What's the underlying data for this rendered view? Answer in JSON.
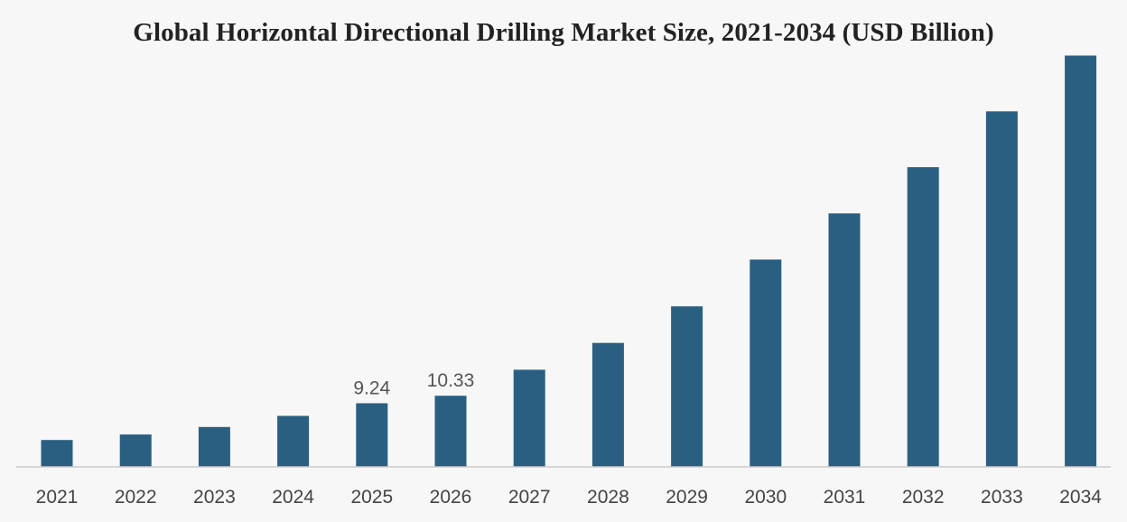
{
  "chart_data": {
    "type": "bar",
    "title": "Global Horizontal Directional Drilling Market Size, 2021-2034 (USD Billion)",
    "xlabel": "",
    "ylabel": "",
    "categories": [
      "2021",
      "2022",
      "2023",
      "2024",
      "2025",
      "2026",
      "2027",
      "2028",
      "2029",
      "2030",
      "2031",
      "2032",
      "2033",
      "2034"
    ],
    "series": [
      {
        "values": [
          3.9,
          4.7,
          5.8,
          7.4,
          9.24,
          10.33,
          14.1,
          18.0,
          23.3,
          30.1,
          36.8,
          43.5,
          51.6,
          59.7
        ]
      }
    ],
    "data_labels": [
      {
        "category": "2025",
        "text": "9.24"
      },
      {
        "category": "2026",
        "text": "10.33"
      }
    ],
    "ylim": [
      0,
      62
    ],
    "grid": false,
    "legend": "none",
    "bar_color": "#2a5f82",
    "axis_color": "#cccccc"
  }
}
